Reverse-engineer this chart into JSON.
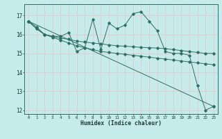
{
  "xlabel": "Humidex (Indice chaleur)",
  "bg_color": "#c5ecea",
  "grid_color": "#e8c8c8",
  "line_color": "#2d6e65",
  "xlim": [
    -0.5,
    23.5
  ],
  "ylim": [
    11.8,
    17.6
  ],
  "yticks": [
    12,
    13,
    14,
    15,
    16,
    17
  ],
  "xticks": [
    0,
    1,
    2,
    3,
    4,
    5,
    6,
    7,
    8,
    9,
    10,
    11,
    12,
    13,
    14,
    15,
    16,
    17,
    18,
    19,
    20,
    21,
    22,
    23
  ],
  "series1_x": [
    0,
    1,
    2,
    3,
    4,
    5,
    6,
    7,
    8,
    9,
    10,
    11,
    12,
    13,
    14,
    15,
    16,
    17,
    18,
    19,
    20,
    21,
    22,
    23
  ],
  "series1_y": [
    16.7,
    16.3,
    16.0,
    15.9,
    15.9,
    16.1,
    15.1,
    15.3,
    16.8,
    15.2,
    16.6,
    16.3,
    16.5,
    17.1,
    17.2,
    16.7,
    16.2,
    15.1,
    15.0,
    15.0,
    14.9,
    13.3,
    12.0,
    12.2
  ],
  "series2_x": [
    0,
    1,
    2,
    3,
    4,
    5,
    6,
    7,
    8,
    9,
    10,
    11,
    12,
    13,
    14,
    15,
    16,
    17,
    18,
    19,
    20,
    21,
    22,
    23
  ],
  "series2_y": [
    16.7,
    16.4,
    16.0,
    15.9,
    15.8,
    15.75,
    15.65,
    15.6,
    15.55,
    15.5,
    15.45,
    15.4,
    15.38,
    15.35,
    15.32,
    15.3,
    15.28,
    15.25,
    15.2,
    15.15,
    15.1,
    15.05,
    15.0,
    15.0
  ],
  "series3_x": [
    0,
    1,
    2,
    3,
    4,
    5,
    6,
    7,
    8,
    9,
    10,
    11,
    12,
    13,
    14,
    15,
    16,
    17,
    18,
    19,
    20,
    21,
    22,
    23
  ],
  "series3_y": [
    16.7,
    16.3,
    16.0,
    15.85,
    15.7,
    15.55,
    15.4,
    15.3,
    15.2,
    15.1,
    15.05,
    15.0,
    14.95,
    14.9,
    14.85,
    14.8,
    14.75,
    14.7,
    14.65,
    14.6,
    14.55,
    14.5,
    14.45,
    14.4
  ],
  "series4_x": [
    0,
    23
  ],
  "series4_y": [
    16.7,
    12.2
  ]
}
